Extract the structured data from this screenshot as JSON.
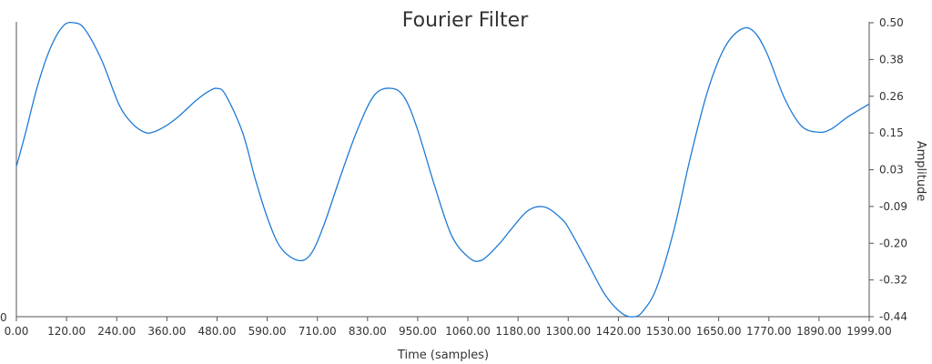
{
  "chart_data": {
    "type": "line",
    "title": "Fourier Filter",
    "xlabel": "Time (samples)",
    "ylabel": "Amplitude",
    "left_axis_label": "0",
    "xlim": [
      0,
      1999
    ],
    "ylim": [
      -0.44,
      0.5
    ],
    "grid": false,
    "legend": "none",
    "x_ticks": [
      "0.00",
      "120.00",
      "240.00",
      "360.00",
      "480.00",
      "590.00",
      "710.00",
      "830.00",
      "950.00",
      "1060.00",
      "1180.00",
      "1300.00",
      "1420.00",
      "1530.00",
      "1650.00",
      "1770.00",
      "1890.00",
      "1999.00"
    ],
    "y_ticks": [
      "0.50",
      "0.38",
      "0.26",
      "0.15",
      "0.03",
      "-0.09",
      "-0.20",
      "-0.32",
      "-0.44"
    ],
    "series": [
      {
        "color": "#1f7bd6",
        "x": [
          0,
          20,
          50,
          80,
          110,
          135,
          160,
          200,
          240,
          270,
          300,
          320,
          350,
          380,
          420,
          450,
          470,
          490,
          530,
          560,
          590,
          620,
          660,
          690,
          720,
          760,
          800,
          840,
          880,
          910,
          940,
          980,
          1020,
          1060,
          1090,
          1130,
          1160,
          1200,
          1240,
          1280,
          1300,
          1340,
          1380,
          1420,
          1450,
          1470,
          1500,
          1540,
          1580,
          1620,
          1660,
          1700,
          1730,
          1760,
          1800,
          1840,
          1880,
          1910,
          1950,
          1999
        ],
        "y": [
          0.04,
          0.14,
          0.3,
          0.42,
          0.49,
          0.5,
          0.48,
          0.38,
          0.24,
          0.18,
          0.15,
          0.15,
          0.17,
          0.2,
          0.25,
          0.28,
          0.29,
          0.27,
          0.15,
          0.0,
          -0.13,
          -0.22,
          -0.26,
          -0.24,
          -0.15,
          0.01,
          0.16,
          0.27,
          0.29,
          0.26,
          0.16,
          -0.02,
          -0.18,
          -0.25,
          -0.26,
          -0.21,
          -0.16,
          -0.1,
          -0.09,
          -0.13,
          -0.17,
          -0.27,
          -0.37,
          -0.43,
          -0.44,
          -0.42,
          -0.35,
          -0.17,
          0.07,
          0.28,
          0.42,
          0.48,
          0.47,
          0.4,
          0.26,
          0.17,
          0.15,
          0.16,
          0.2,
          0.24
        ]
      }
    ]
  }
}
